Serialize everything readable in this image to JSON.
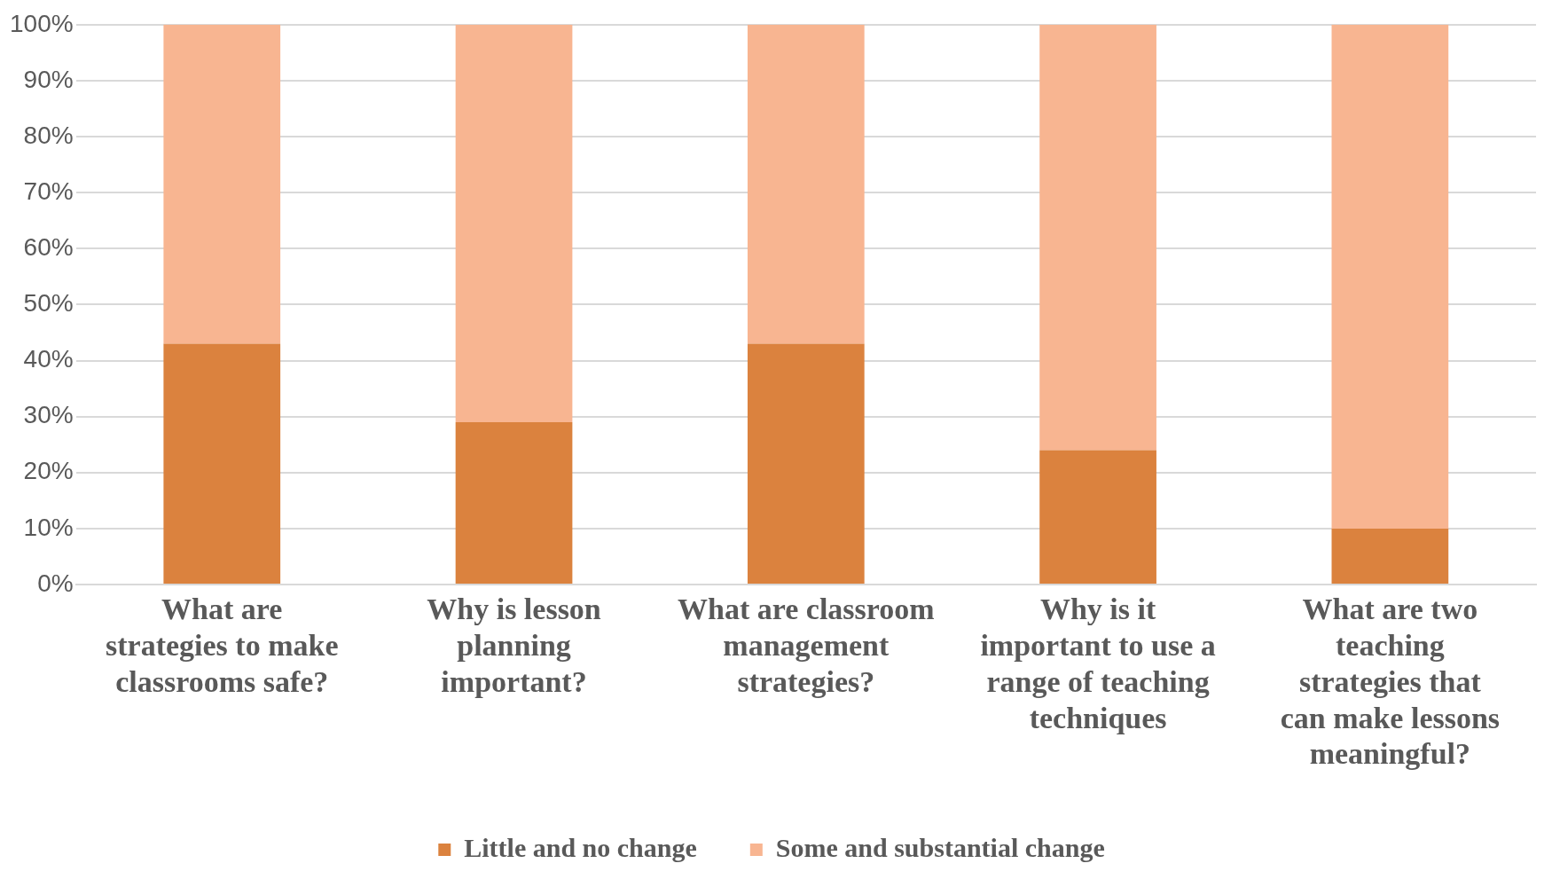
{
  "chart_data": {
    "type": "bar",
    "stacked": true,
    "categories": [
      "What are strategies to make classrooms safe?",
      "Why is lesson planning important?",
      "What are classroom management strategies?",
      "Why is it important to use a range of teaching techniques",
      "What are two teaching strategies that can make lessons meaningful?"
    ],
    "series": [
      {
        "name": "Little and no change",
        "color": "#db823e",
        "values": [
          43,
          29,
          43,
          24,
          10
        ]
      },
      {
        "name": "Some and substantial change",
        "color": "#f8b591",
        "values": [
          57,
          71,
          57,
          76,
          90
        ]
      }
    ],
    "ylim": [
      0,
      100
    ],
    "yticks": [
      {
        "value": 0,
        "label": "0%"
      },
      {
        "value": 10,
        "label": "10%"
      },
      {
        "value": 20,
        "label": "20%"
      },
      {
        "value": 30,
        "label": "30%"
      },
      {
        "value": 40,
        "label": "40%"
      },
      {
        "value": 50,
        "label": "50%"
      },
      {
        "value": 60,
        "label": "60%"
      },
      {
        "value": 70,
        "label": "70%"
      },
      {
        "value": 80,
        "label": "80%"
      },
      {
        "value": 90,
        "label": "90%"
      },
      {
        "value": 100,
        "label": "100%"
      }
    ],
    "grid": "y",
    "legend": "bottom"
  }
}
